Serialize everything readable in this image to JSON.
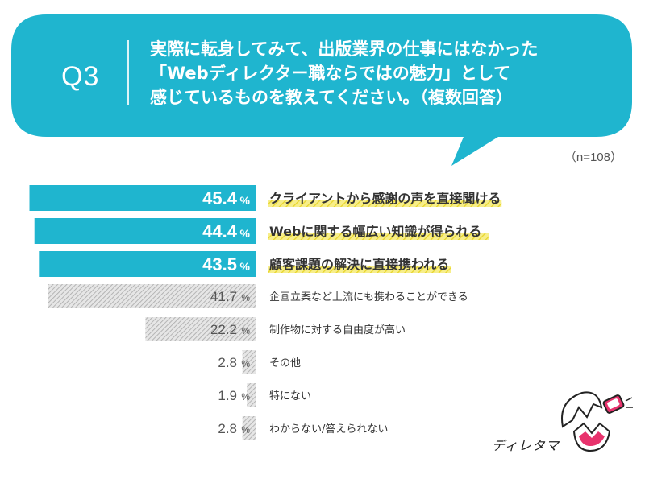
{
  "header": {
    "q_number": "Q3",
    "question_lines": [
      "実際に転身してみて、出版業界の仕事にはなかった",
      "「Webディレクター職ならではの魅力」として",
      "感じているものを教えてください。（複数回答）"
    ],
    "sample_size": "（n=108）"
  },
  "chart_data": {
    "type": "bar",
    "orientation": "horizontal",
    "categories": [
      "クライアントから感謝の声を直接聞ける",
      "Webに関する幅広い知識が得られる",
      "顧客課題の解決に直接携われる",
      "企画立案など上流にも携わることができる",
      "制作物に対する自由度が高い",
      "その他",
      "特にない",
      "わからない/答えられない"
    ],
    "values": [
      45.4,
      44.4,
      43.5,
      41.7,
      22.2,
      2.8,
      1.9,
      2.8
    ],
    "value_labels": [
      "45.4",
      "44.4",
      "43.5",
      "41.7",
      "22.2",
      "2.8",
      "1.9",
      "2.8"
    ],
    "unit": "%",
    "highlight_top": 3,
    "colors": {
      "highlight": "#1fb5cf",
      "hatch": "#bdbdbd",
      "underline": "#f2e24a"
    },
    "xlim": [
      0,
      50
    ]
  },
  "mascot": {
    "name": "ディレタマ"
  },
  "colors": {
    "brand": "#1fb5cf"
  }
}
